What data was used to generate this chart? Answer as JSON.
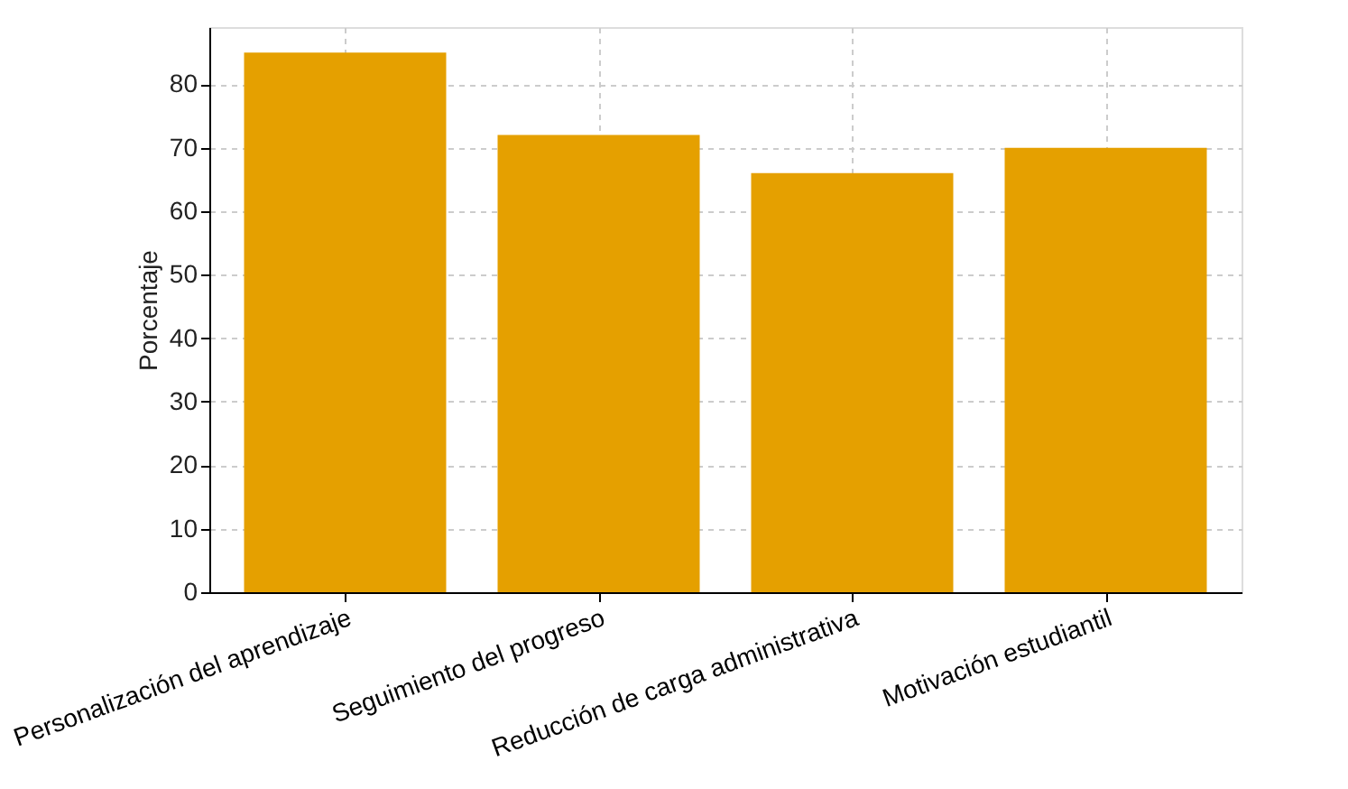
{
  "chart_data": {
    "type": "bar",
    "ylabel": "Porcentaje",
    "categories": [
      "Personalización del aprendizaje",
      "Seguimiento del progreso",
      "Reducción de carga administrativa",
      "Motivación estudiantil"
    ],
    "values": [
      85,
      72,
      66,
      70
    ],
    "color": "#e5a000",
    "ylim": [
      0,
      89
    ],
    "yticks": [
      0,
      10,
      20,
      30,
      40,
      50,
      60,
      70,
      80
    ],
    "grid": true
  }
}
